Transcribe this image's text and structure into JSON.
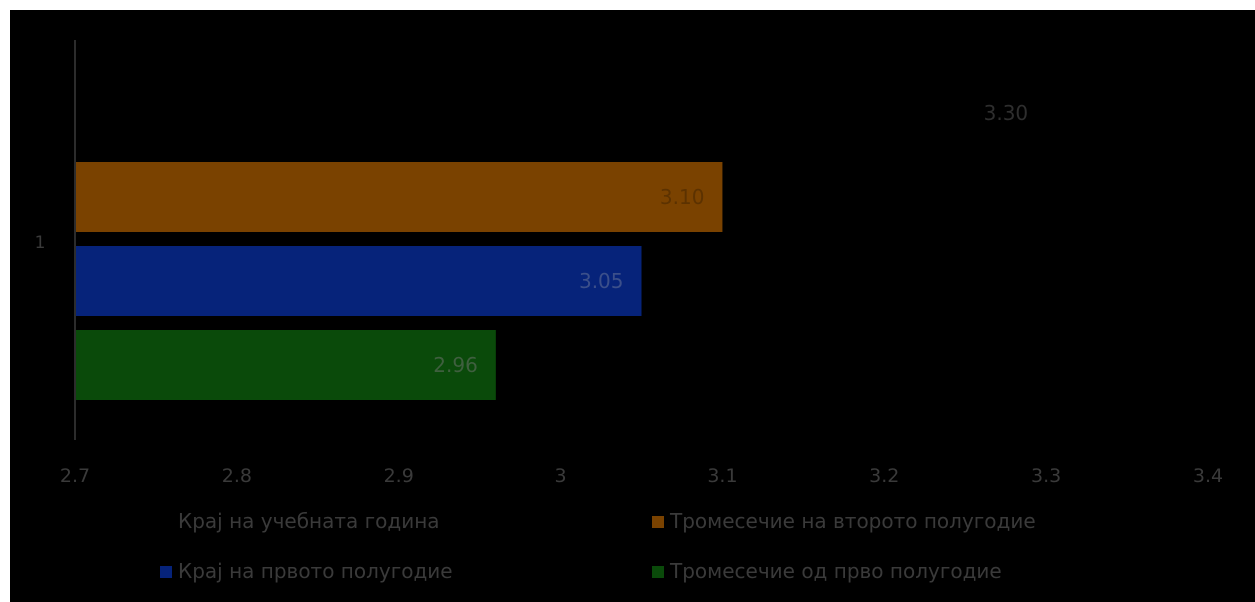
{
  "chart_data": {
    "type": "bar",
    "orientation": "horizontal",
    "categories": [
      "1"
    ],
    "xlim": [
      2.7,
      3.4
    ],
    "xticks": [
      "2.7",
      "2.8",
      "2.9",
      "3",
      "3.1",
      "3.2",
      "3.3",
      "3.4"
    ],
    "grid": false,
    "legend_position": "bottom",
    "series": [
      {
        "name": "Крај на учебната година",
        "values": [
          3.3
        ],
        "label": "3.30",
        "color": "#000000",
        "label_color": "#2e2e2e"
      },
      {
        "name": "Тромесечие на второто полугодие",
        "values": [
          3.1
        ],
        "label": "3.10",
        "color": "#7a4200",
        "label_color": "#5c3200"
      },
      {
        "name": "Крај на првото полугодие",
        "values": [
          3.05
        ],
        "label": "3.05",
        "color": "#06237a",
        "label_color": "#3b4f8a"
      },
      {
        "name": "Тромесечие од прво  полугодие",
        "values": [
          2.96
        ],
        "label": "2.96",
        "color": "#0a4a0a",
        "label_color": "#3f5f3f"
      }
    ]
  }
}
